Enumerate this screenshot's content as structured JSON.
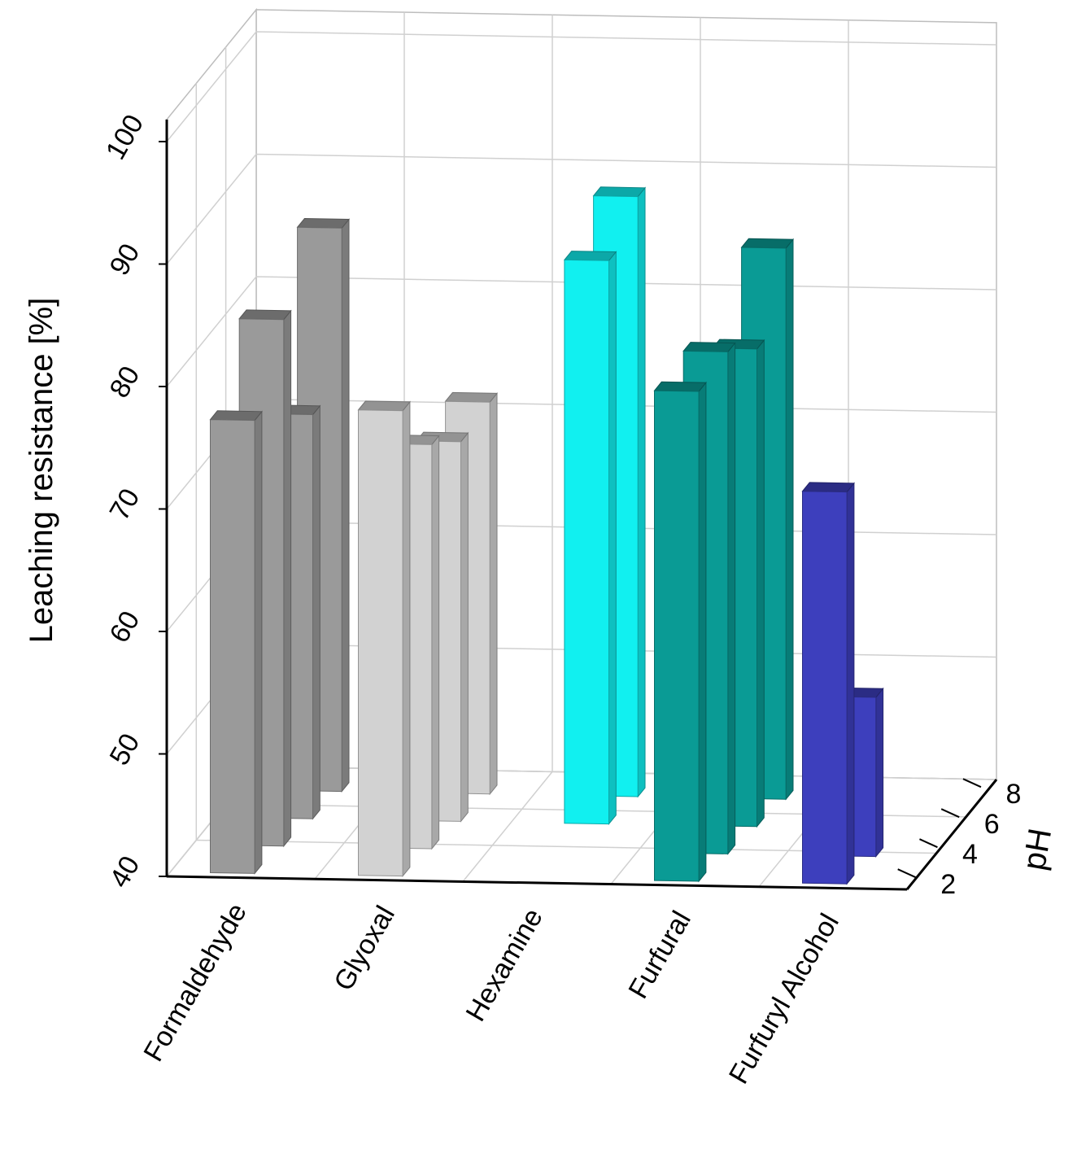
{
  "chart_data": {
    "type": "bar3d",
    "ylabel": "Leaching resistance [%]",
    "zlabel": "pH",
    "ylim": [
      40,
      100
    ],
    "y_ticks": [
      40,
      50,
      60,
      70,
      80,
      90,
      100
    ],
    "ph_ticks": [
      2,
      4,
      6,
      8
    ],
    "categories": [
      "Formaldehyde",
      "Glyoxal",
      "Hexamine",
      "Furfural",
      "Furfuryl Alcohol"
    ],
    "series": [
      {
        "name": "Formaldehyde",
        "color": "#9a9a9a",
        "values": [
          {
            "ph": 2,
            "value": 77
          },
          {
            "ph": 4,
            "value": 83
          },
          {
            "ph": 6,
            "value": 73
          },
          {
            "ph": 8,
            "value": 86
          }
        ]
      },
      {
        "name": "Glyoxal",
        "color": "#d2d2d2",
        "values": [
          {
            "ph": 2,
            "value": 78
          },
          {
            "ph": 4,
            "value": 73
          },
          {
            "ph": 6,
            "value": 71
          },
          {
            "ph": 8,
            "value": 72
          }
        ]
      },
      {
        "name": "Hexamine",
        "color": "#11f0f0",
        "values": [
          {
            "ph": 6,
            "value": 86
          },
          {
            "ph": 8,
            "value": 89
          }
        ]
      },
      {
        "name": "Furfural",
        "color": "#0a9b95",
        "values": [
          {
            "ph": 2,
            "value": 80
          },
          {
            "ph": 4,
            "value": 81
          },
          {
            "ph": 6,
            "value": 79
          },
          {
            "ph": 8,
            "value": 85
          }
        ]
      },
      {
        "name": "Furfuryl Alcohol",
        "color": "#3d3fbd",
        "values": [
          {
            "ph": 2,
            "value": 72
          },
          {
            "ph": 4,
            "value": 53
          }
        ]
      }
    ]
  }
}
